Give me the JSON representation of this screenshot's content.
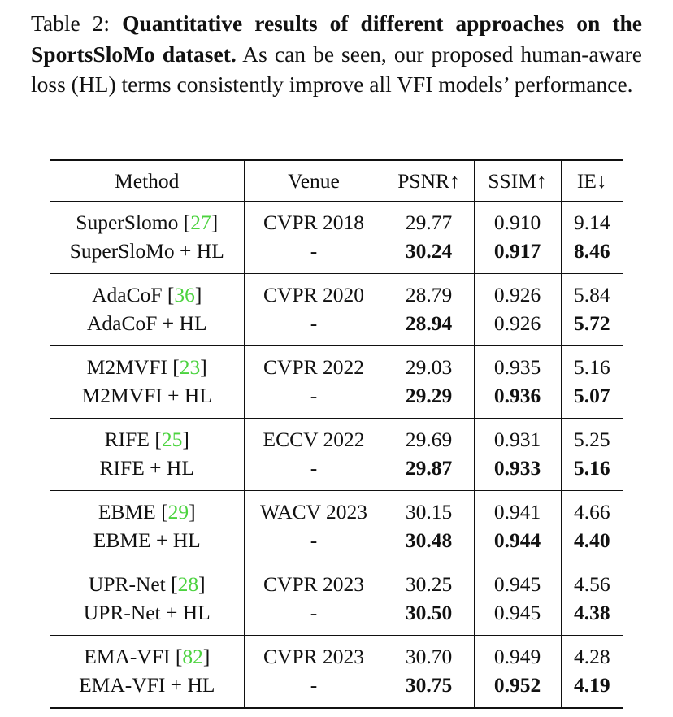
{
  "caption": {
    "label": "Table 2:",
    "bold": "Quantitative results of different approaches on the SportsSloMo dataset.",
    "text": "As can be seen, our proposed human-aware loss (HL) terms consistently improve all VFI models’ performance."
  },
  "table": {
    "header": [
      "Method",
      "Venue",
      "PSNR↑",
      "SSIM↑",
      "IE↓"
    ],
    "groups": [
      [
        {
          "method": "SuperSlomo",
          "cite": "[27]",
          "cells": [
            "CVPR 2018",
            "29.77",
            "0.910",
            "9.14"
          ],
          "bold": [
            false,
            false,
            false,
            false
          ]
        },
        {
          "method": "SuperSloMo + HL",
          "cells": [
            "-",
            "30.24",
            "0.917",
            "8.46"
          ],
          "bold": [
            false,
            true,
            true,
            true
          ]
        }
      ],
      [
        {
          "method": "AdaCoF",
          "cite": "[36]",
          "cells": [
            "CVPR 2020",
            "28.79",
            "0.926",
            "5.84"
          ],
          "bold": [
            false,
            false,
            false,
            false
          ]
        },
        {
          "method": "AdaCoF + HL",
          "cells": [
            "-",
            "28.94",
            "0.926",
            "5.72"
          ],
          "bold": [
            false,
            true,
            false,
            true
          ]
        }
      ],
      [
        {
          "method": "M2MVFI",
          "cite": "[23]",
          "cells": [
            "CVPR 2022",
            "29.03",
            "0.935",
            "5.16"
          ],
          "bold": [
            false,
            false,
            false,
            false
          ]
        },
        {
          "method": "M2MVFI + HL",
          "cells": [
            "-",
            "29.29",
            "0.936",
            "5.07"
          ],
          "bold": [
            false,
            true,
            true,
            true
          ]
        }
      ],
      [
        {
          "method": "RIFE",
          "cite": "[25]",
          "cells": [
            "ECCV 2022",
            "29.69",
            "0.931",
            "5.25"
          ],
          "bold": [
            false,
            false,
            false,
            false
          ]
        },
        {
          "method": "RIFE + HL",
          "cells": [
            "-",
            "29.87",
            "0.933",
            "5.16"
          ],
          "bold": [
            false,
            true,
            true,
            true
          ]
        }
      ],
      [
        {
          "method": "EBME",
          "cite": "[29]",
          "cells": [
            "WACV 2023",
            "30.15",
            "0.941",
            "4.66"
          ],
          "bold": [
            false,
            false,
            false,
            false
          ]
        },
        {
          "method": "EBME + HL",
          "cells": [
            "-",
            "30.48",
            "0.944",
            "4.40"
          ],
          "bold": [
            false,
            true,
            true,
            true
          ]
        }
      ],
      [
        {
          "method": "UPR-Net",
          "cite": "[28]",
          "cells": [
            "CVPR 2023",
            "30.25",
            "0.945",
            "4.56"
          ],
          "bold": [
            false,
            false,
            false,
            false
          ]
        },
        {
          "method": "UPR-Net + HL",
          "cells": [
            "-",
            "30.50",
            "0.945",
            "4.38"
          ],
          "bold": [
            false,
            true,
            false,
            true
          ]
        }
      ],
      [
        {
          "method": "EMA-VFI",
          "cite": "[82]",
          "cells": [
            "CVPR 2023",
            "30.70",
            "0.949",
            "4.28"
          ],
          "bold": [
            false,
            false,
            false,
            false
          ]
        },
        {
          "method": "EMA-VFI + HL",
          "cells": [
            "-",
            "30.75",
            "0.952",
            "4.19"
          ],
          "bold": [
            false,
            true,
            true,
            true
          ]
        }
      ]
    ]
  }
}
